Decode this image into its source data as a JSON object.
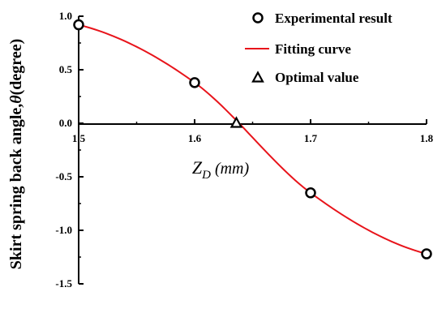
{
  "chart_data": {
    "type": "line",
    "xlabel": {
      "main": "Z",
      "sub": "D",
      "unit": "mm"
    },
    "ylabel": {
      "text": "Skirt spring back angle,",
      "symbol": "θ",
      "unit": "(degree)"
    },
    "xlim": [
      1.5,
      1.8
    ],
    "ylim": [
      -1.5,
      1.0
    ],
    "xticks": [
      "1.5",
      "1.6",
      "1.7",
      "1.8"
    ],
    "yticks": [
      "1.0",
      "0.5",
      "0.0",
      "-0.5",
      "-1.0",
      "-1.5"
    ],
    "grid": false,
    "legend_position": "top-right",
    "series": [
      {
        "name": "Experimental result",
        "marker": "circle",
        "x": [
          1.5,
          1.6,
          1.7,
          1.8
        ],
        "y": [
          0.92,
          0.38,
          -0.65,
          -1.22
        ]
      },
      {
        "name": "Fitting curve",
        "style": "line",
        "color": "#e8141b",
        "x": [
          1.5,
          1.6,
          1.7,
          1.8
        ],
        "y": [
          0.92,
          0.38,
          -0.65,
          -1.22
        ]
      },
      {
        "name": "Optimal value",
        "marker": "triangle",
        "x": [
          1.636
        ],
        "y": [
          0.0
        ]
      }
    ]
  }
}
